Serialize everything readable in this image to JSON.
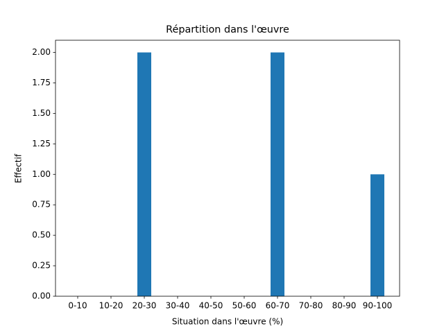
{
  "chart_data": {
    "type": "bar",
    "title": "Répartition dans l'œuvre",
    "x_label": "Situation dans l'œuvre (%)",
    "y_label": "Effectif",
    "categories": [
      "0-10",
      "10-20",
      "20-30",
      "30-40",
      "40-50",
      "50-60",
      "60-70",
      "70-80",
      "80-90",
      "90-100"
    ],
    "values": [
      0,
      0,
      2,
      0,
      0,
      0,
      2,
      0,
      0,
      1
    ],
    "color": "#1f77b4",
    "ylim": [
      0,
      2.1
    ],
    "yticks": [
      {
        "value": 0,
        "label": "0.00"
      },
      {
        "value": 0.25,
        "label": "0.25"
      },
      {
        "value": 0.5,
        "label": "0.50"
      },
      {
        "value": 0.75,
        "label": "0.75"
      },
      {
        "value": 1,
        "label": "1.00"
      },
      {
        "value": 1.25,
        "label": "1.25"
      },
      {
        "value": 1.5,
        "label": "1.50"
      },
      {
        "value": 1.75,
        "label": "1.75"
      },
      {
        "value": 2,
        "label": "2.00"
      }
    ],
    "grid": false
  }
}
